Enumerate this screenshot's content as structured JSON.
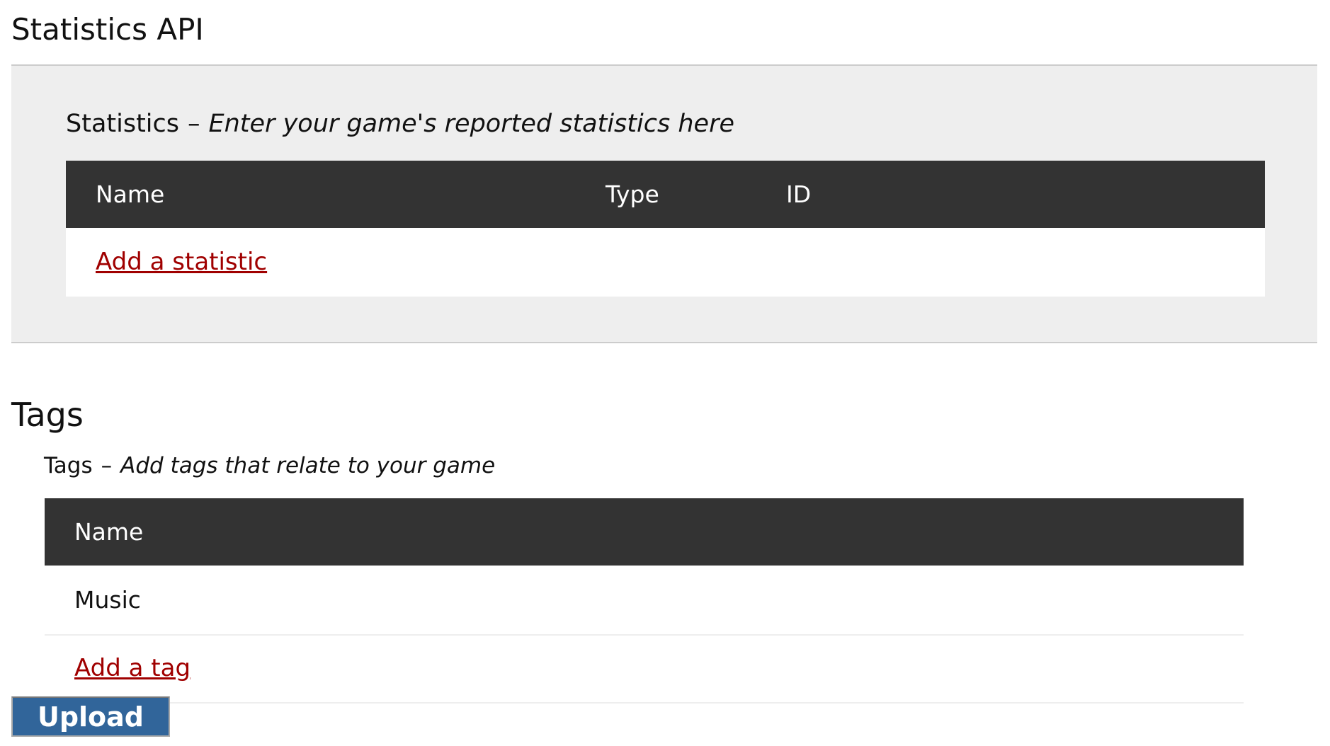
{
  "statistics_section": {
    "title": "Statistics API",
    "subtitle_label": "Statistics",
    "subtitle_separator": "–",
    "subtitle_hint": "Enter your game's reported statistics here",
    "table": {
      "columns": [
        "Name",
        "Type",
        "ID"
      ],
      "add_link": "Add a statistic"
    }
  },
  "tags_section": {
    "title": "Tags",
    "subtitle_label": "Tags",
    "subtitle_separator": "–",
    "subtitle_hint": "Add tags that relate to your game",
    "table": {
      "columns": [
        "Name"
      ],
      "rows": [
        "Music"
      ],
      "add_link": "Add a tag"
    }
  },
  "upload_button": "Upload",
  "colors": {
    "header_bg": "#333333",
    "link": "#a00000",
    "button": "#31659a",
    "panel": "#eeeeee"
  }
}
